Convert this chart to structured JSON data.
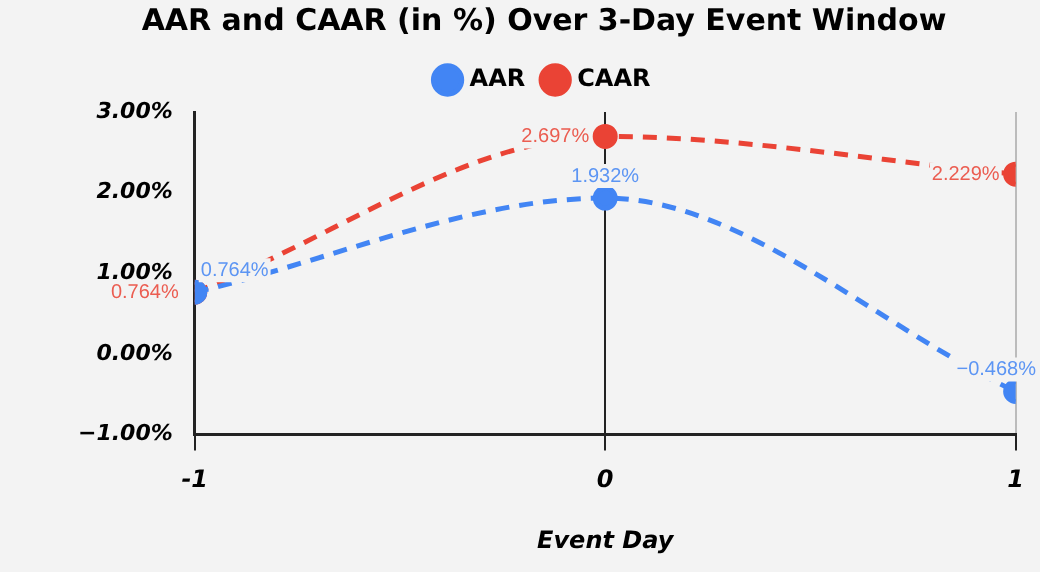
{
  "chart_data": {
    "type": "line",
    "title": "AAR and CAAR (in %) Over 3-Day Event Window",
    "xlabel": "Event Day",
    "x": [
      -1,
      0,
      1
    ],
    "series": [
      {
        "name": "AAR",
        "color": "#4285f4",
        "values": [
          0.764,
          1.932,
          -0.468
        ],
        "value_labels": [
          "0.764%",
          "1.932%",
          "−0.468%"
        ]
      },
      {
        "name": "CAAR",
        "color": "#ea4335",
        "values": [
          0.764,
          2.697,
          2.229
        ],
        "value_labels": [
          "0.764%",
          "2.697%",
          "2.229%"
        ]
      }
    ],
    "xlim": [
      -1,
      1
    ],
    "xticks": [
      -1,
      0,
      1
    ],
    "ylim": [
      -1,
      3
    ],
    "yticks": [
      {
        "value": -1,
        "label": "−1.00%"
      },
      {
        "value": 0,
        "label": "0.00%"
      },
      {
        "value": 1,
        "label": "1.00%"
      },
      {
        "value": 2,
        "label": "2.00%"
      },
      {
        "value": 3,
        "label": "3.00%"
      }
    ],
    "grid": "x",
    "legend": "top",
    "marker": "circle",
    "line_style": "dashed"
  }
}
